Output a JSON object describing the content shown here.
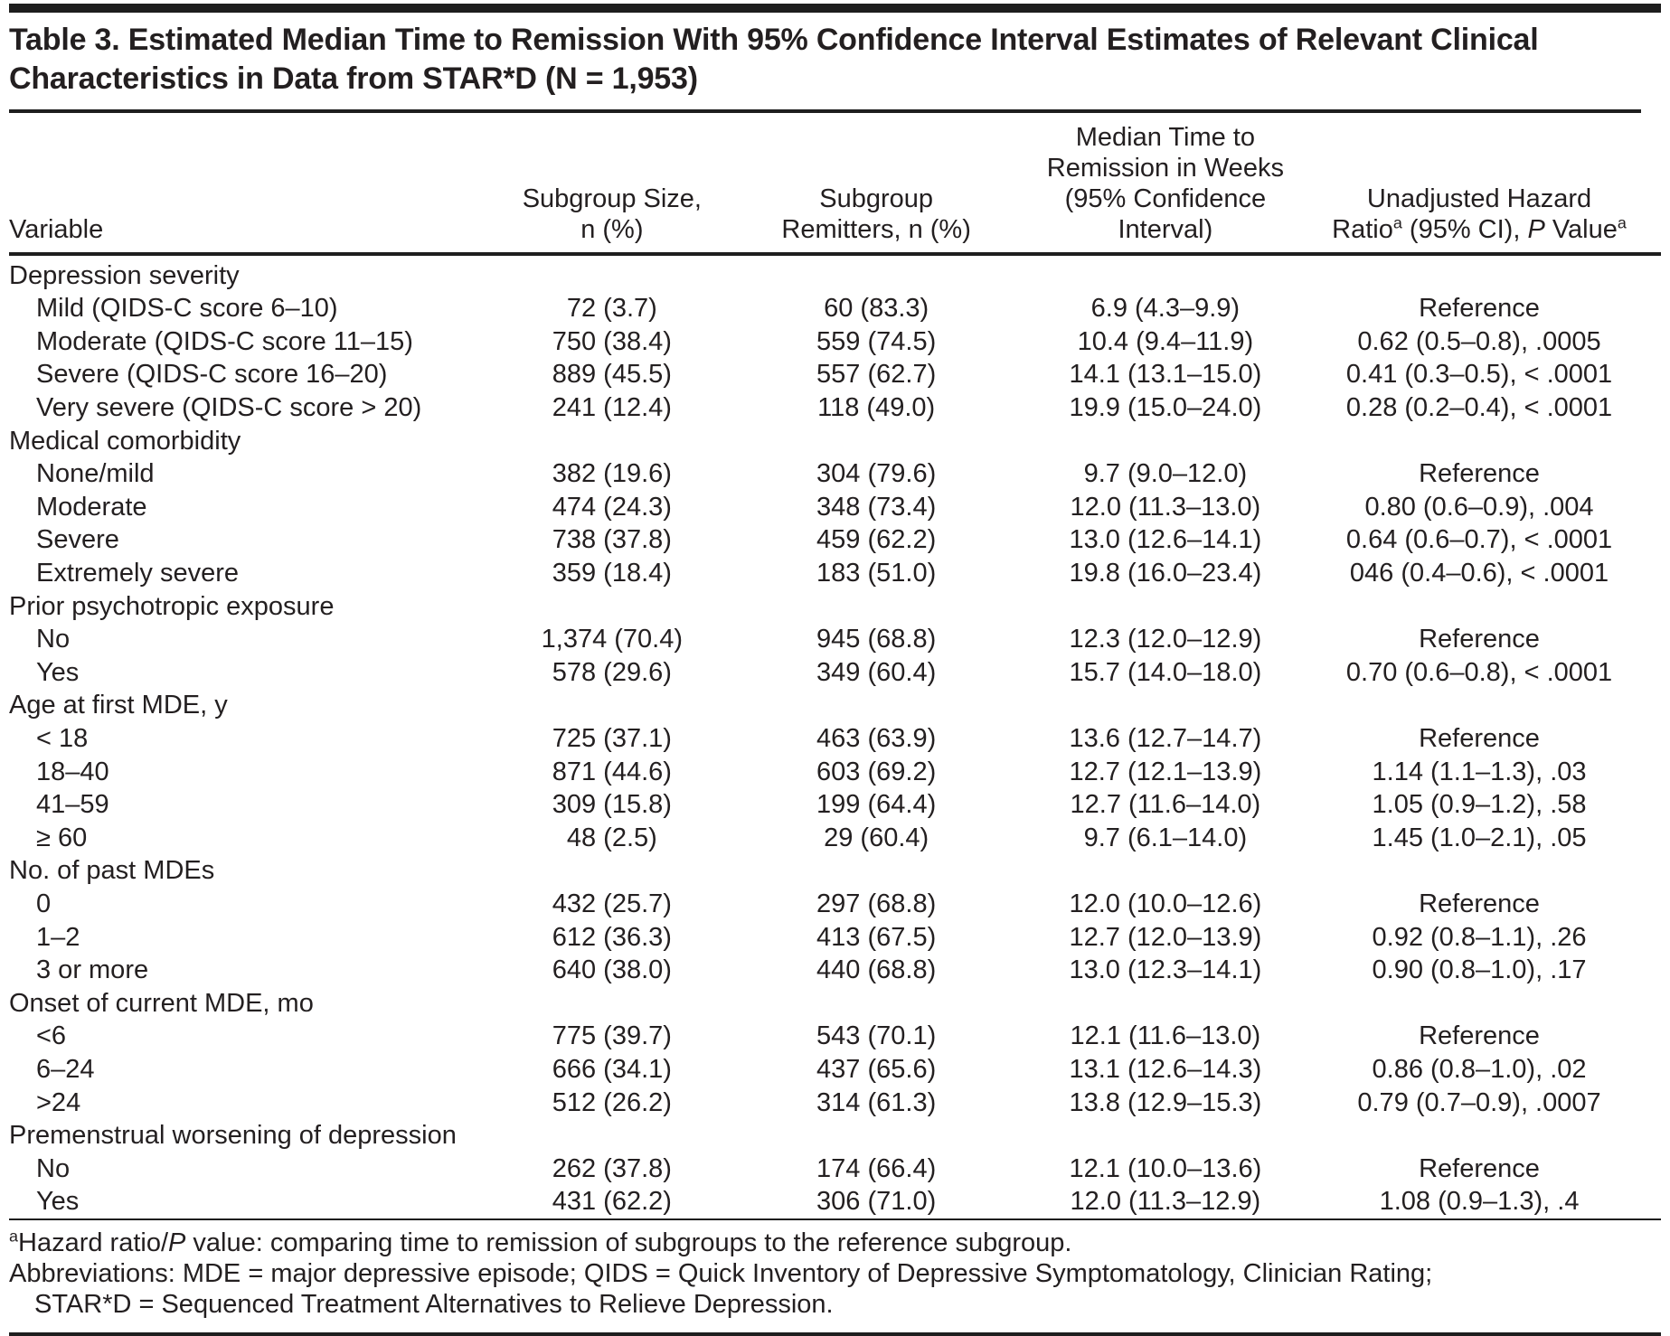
{
  "title": "Table 3. Estimated Median Time to Remission With 95% Confidence Interval Estimates of Relevant Clinical Characteristics in Data from STAR*D (N = 1,953)",
  "header": {
    "variable": "Variable",
    "subgroup_size": {
      "line1": "Subgroup Size,",
      "line2": "n (%)"
    },
    "remitters": {
      "line1": "Subgroup",
      "line2": "Remitters, n (%)"
    },
    "median_time": {
      "line1": "Median Time to",
      "line2": "Remission in Weeks",
      "line3": "(95% Confidence Interval)"
    },
    "hazard": {
      "line1": "Unadjusted Hazard",
      "ratio": "Ratio",
      "sup1": "a",
      "mid": " (95% CI), ",
      "p_italic": "P",
      "value": " Value",
      "sup2": "a"
    }
  },
  "rows": [
    {
      "type": "section",
      "label": "Depression severity"
    },
    {
      "type": "data",
      "label": "Mild (QIDS-C score 6–10)",
      "size": "72 (3.7)",
      "remitters": "60 (83.3)",
      "median": "6.9 (4.3–9.9)",
      "hazard": "Reference"
    },
    {
      "type": "data",
      "label": "Moderate (QIDS-C score 11–15)",
      "size": "750 (38.4)",
      "remitters": "559 (74.5)",
      "median": "10.4 (9.4–11.9)",
      "hazard": "0.62 (0.5–0.8), .0005"
    },
    {
      "type": "data",
      "label": "Severe (QIDS-C score 16–20)",
      "size": "889 (45.5)",
      "remitters": "557 (62.7)",
      "median": "14.1 (13.1–15.0)",
      "hazard": "0.41 (0.3–0.5), < .0001"
    },
    {
      "type": "data",
      "label": "Very severe (QIDS-C score > 20)",
      "size": "241 (12.4)",
      "remitters": "118 (49.0)",
      "median": "19.9 (15.0–24.0)",
      "hazard": "0.28 (0.2–0.4), < .0001"
    },
    {
      "type": "section",
      "label": "Medical comorbidity"
    },
    {
      "type": "data",
      "label": "None/mild",
      "size": "382 (19.6)",
      "remitters": "304 (79.6)",
      "median": "9.7 (9.0–12.0)",
      "hazard": "Reference"
    },
    {
      "type": "data",
      "label": "Moderate",
      "size": "474 (24.3)",
      "remitters": "348 (73.4)",
      "median": "12.0 (11.3–13.0)",
      "hazard": "0.80 (0.6–0.9), .004"
    },
    {
      "type": "data",
      "label": "Severe",
      "size": "738 (37.8)",
      "remitters": "459 (62.2)",
      "median": "13.0 (12.6–14.1)",
      "hazard": "0.64 (0.6–0.7), < .0001"
    },
    {
      "type": "data",
      "label": "Extremely severe",
      "size": "359 (18.4)",
      "remitters": "183 (51.0)",
      "median": "19.8 (16.0–23.4)",
      "hazard": "046 (0.4–0.6), < .0001"
    },
    {
      "type": "section",
      "label": "Prior psychotropic exposure"
    },
    {
      "type": "data",
      "label": "No",
      "size": "1,374 (70.4)",
      "remitters": "945 (68.8)",
      "median": "12.3 (12.0–12.9)",
      "hazard": "Reference"
    },
    {
      "type": "data",
      "label": "Yes",
      "size": "578 (29.6)",
      "remitters": "349 (60.4)",
      "median": "15.7 (14.0–18.0)",
      "hazard": "0.70 (0.6–0.8), < .0001"
    },
    {
      "type": "section",
      "label": "Age at first MDE, y"
    },
    {
      "type": "data",
      "label": "< 18",
      "size": "725 (37.1)",
      "remitters": "463 (63.9)",
      "median": "13.6 (12.7–14.7)",
      "hazard": "Reference"
    },
    {
      "type": "data",
      "label": "18–40",
      "size": "871 (44.6)",
      "remitters": "603 (69.2)",
      "median": "12.7 (12.1–13.9)",
      "hazard": "1.14 (1.1–1.3), .03"
    },
    {
      "type": "data",
      "label": "41–59",
      "size": "309 (15.8)",
      "remitters": "199 (64.4)",
      "median": "12.7 (11.6–14.0)",
      "hazard": "1.05 (0.9–1.2), .58"
    },
    {
      "type": "data",
      "label": "≥ 60",
      "size": "48 (2.5)",
      "remitters": "29 (60.4)",
      "median": "9.7 (6.1–14.0)",
      "hazard": "1.45 (1.0–2.1), .05"
    },
    {
      "type": "section",
      "label": "No. of past MDEs"
    },
    {
      "type": "data",
      "label": "0",
      "size": "432 (25.7)",
      "remitters": "297 (68.8)",
      "median": "12.0 (10.0–12.6)",
      "hazard": "Reference"
    },
    {
      "type": "data",
      "label": "1–2",
      "size": "612 (36.3)",
      "remitters": "413 (67.5)",
      "median": "12.7 (12.0–13.9)",
      "hazard": "0.92 (0.8–1.1), .26"
    },
    {
      "type": "data",
      "label": "3 or more",
      "size": "640 (38.0)",
      "remitters": "440 (68.8)",
      "median": "13.0 (12.3–14.1)",
      "hazard": "0.90 (0.8–1.0), .17"
    },
    {
      "type": "section",
      "label": "Onset of current MDE, mo"
    },
    {
      "type": "data",
      "label": "<6",
      "size": "775 (39.7)",
      "remitters": "543 (70.1)",
      "median": "12.1 (11.6–13.0)",
      "hazard": "Reference"
    },
    {
      "type": "data",
      "label": "6–24",
      "size": "666 (34.1)",
      "remitters": "437 (65.6)",
      "median": "13.1 (12.6–14.3)",
      "hazard": "0.86 (0.8–1.0), .02"
    },
    {
      "type": "data",
      "label": ">24",
      "size": "512 (26.2)",
      "remitters": "314 (61.3)",
      "median": "13.8 (12.9–15.3)",
      "hazard": "0.79 (0.7–0.9), .0007"
    },
    {
      "type": "section",
      "label": "Premenstrual worsening of depression"
    },
    {
      "type": "data",
      "label": "No",
      "size": "262 (37.8)",
      "remitters": "174 (66.4)",
      "median": "12.1 (10.0–13.6)",
      "hazard": "Reference"
    },
    {
      "type": "data",
      "label": "Yes",
      "size": "431 (62.2)",
      "remitters": "306 (71.0)",
      "median": "12.0 (11.3–12.9)",
      "hazard": "1.08 (0.9–1.3), .4"
    }
  ],
  "footnotes": {
    "a": {
      "sup": "a",
      "pre": "Hazard ratio/",
      "p_italic": "P",
      "post": " value: comparing time to remission of subgroups to the reference subgroup."
    },
    "abbrev_line1": "Abbreviations: MDE = major depressive episode; QIDS = Quick Inventory of Depressive Symptomatology, Clinician Rating;",
    "abbrev_line2": "STAR*D = Sequenced Treatment Alternatives to Relieve Depression."
  },
  "colors": {
    "text": "#231f20",
    "rule": "#1e1e1e",
    "background": "#ffffff"
  }
}
